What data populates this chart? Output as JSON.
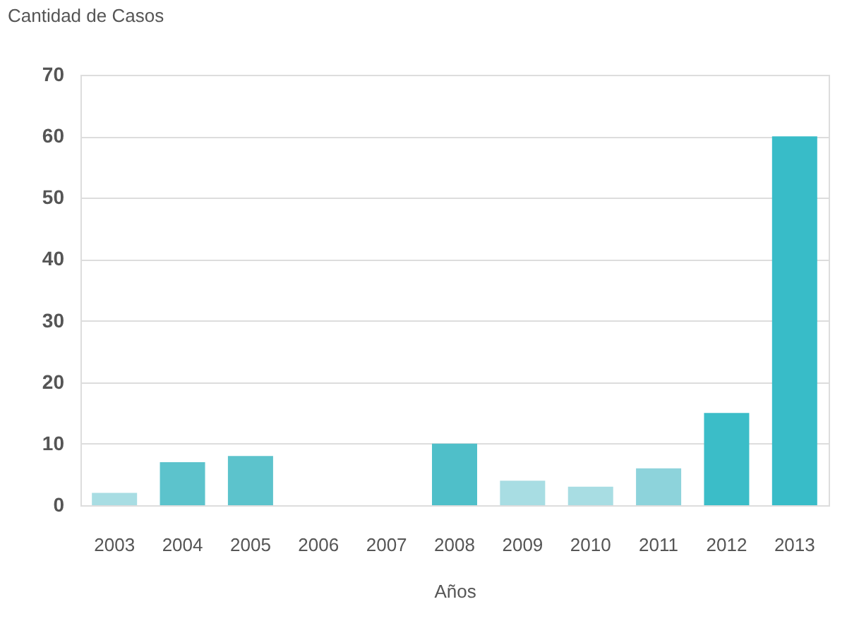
{
  "chart_data": {
    "type": "bar",
    "ylabel": "Cantidad de Casos",
    "xlabel": "Años",
    "categories": [
      "2003",
      "2004",
      "2005",
      "2006",
      "2007",
      "2008",
      "2009",
      "2010",
      "2011",
      "2012",
      "2013"
    ],
    "values": [
      2,
      7,
      8,
      0,
      0,
      10,
      4,
      3,
      6,
      15,
      60
    ],
    "colors": [
      "#a8dde3",
      "#5cc3cc",
      "#5cc3cc",
      "#5cc3cc",
      "#5cc3cc",
      "#4fbfc9",
      "#a8dde3",
      "#a8dde3",
      "#8dd3db",
      "#3bbdc8",
      "#38bcc8"
    ],
    "ylim": [
      0,
      70
    ],
    "yticks": [
      0,
      10,
      20,
      30,
      40,
      50,
      60,
      70
    ],
    "grid": "y"
  }
}
